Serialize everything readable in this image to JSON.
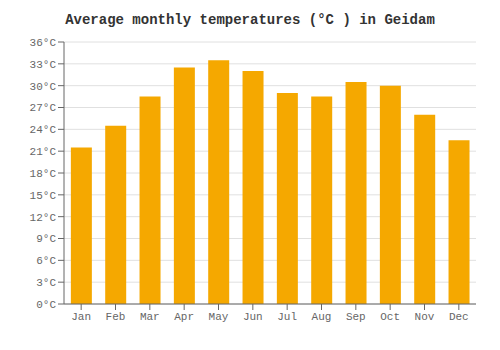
{
  "chart_data": {
    "type": "bar",
    "title": "Average monthly temperatures (°C ) in Geidam",
    "categories": [
      "Jan",
      "Feb",
      "Mar",
      "Apr",
      "May",
      "Jun",
      "Jul",
      "Aug",
      "Sep",
      "Oct",
      "Nov",
      "Dec"
    ],
    "values": [
      21.5,
      24.5,
      28.5,
      32.5,
      33.5,
      32.0,
      29.0,
      28.5,
      30.5,
      30.0,
      26.0,
      22.5
    ],
    "color": "#F5A800",
    "ylim": [
      0,
      36
    ],
    "yticks": [
      {
        "value": 0,
        "label": "0°C"
      },
      {
        "value": 3,
        "label": "3°C"
      },
      {
        "value": 6,
        "label": "6°C"
      },
      {
        "value": 9,
        "label": "9°C"
      },
      {
        "value": 12,
        "label": "12°C"
      },
      {
        "value": 15,
        "label": "15°C"
      },
      {
        "value": 18,
        "label": "18°C"
      },
      {
        "value": 21,
        "label": "21°C"
      },
      {
        "value": 24,
        "label": "24°C"
      },
      {
        "value": 27,
        "label": "27°C"
      },
      {
        "value": 30,
        "label": "30°C"
      },
      {
        "value": 33,
        "label": "33°C"
      },
      {
        "value": 36,
        "label": "36°C"
      }
    ],
    "grid": true
  }
}
